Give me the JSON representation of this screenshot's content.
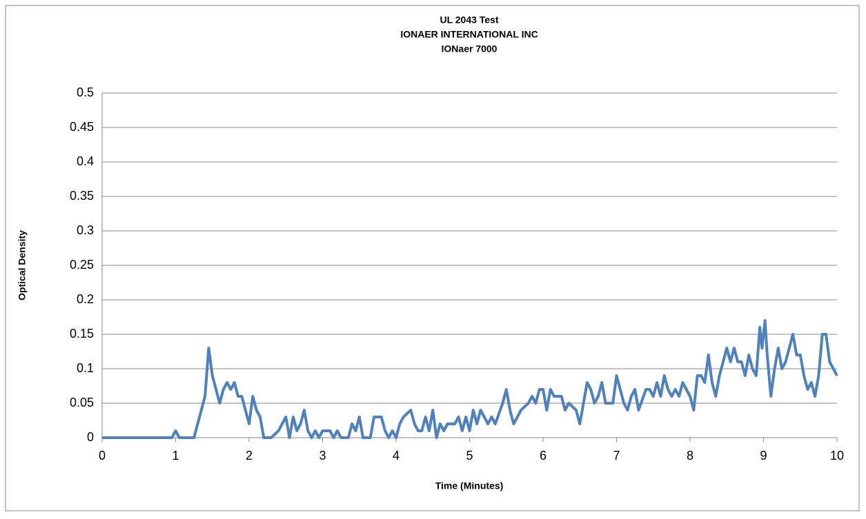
{
  "chart_data": {
    "type": "line",
    "title": [
      "UL 2043 Test",
      "IONAER INTERNATIONAL INC",
      "IONaer 7000"
    ],
    "x_label": "Time (Minutes)",
    "y_label": "Optical Density",
    "xlim": [
      0,
      10
    ],
    "xticks": [
      0,
      1,
      2,
      3,
      4,
      5,
      6,
      7,
      8,
      9,
      10
    ],
    "ylim": [
      0,
      0.5
    ],
    "yticks": [
      0,
      0.05,
      0.1,
      0.15,
      0.2,
      0.25,
      0.3,
      0.35,
      0.4,
      0.45,
      0.5
    ],
    "grid": true,
    "series": [
      {
        "color": "#4f81bd",
        "x": [
          0,
          0.95,
          1.0,
          1.05,
          1.25,
          1.3,
          1.35,
          1.4,
          1.45,
          1.5,
          1.55,
          1.6,
          1.65,
          1.7,
          1.75,
          1.8,
          1.85,
          1.9,
          1.95,
          2.0,
          2.05,
          2.1,
          2.15,
          2.2,
          2.3,
          2.4,
          2.45,
          2.5,
          2.55,
          2.6,
          2.65,
          2.7,
          2.75,
          2.8,
          2.85,
          2.9,
          2.95,
          3.0,
          3.1,
          3.15,
          3.2,
          3.25,
          3.35,
          3.4,
          3.45,
          3.5,
          3.55,
          3.65,
          3.7,
          3.8,
          3.85,
          3.9,
          3.95,
          4.0,
          4.05,
          4.1,
          4.2,
          4.25,
          4.3,
          4.35,
          4.4,
          4.45,
          4.5,
          4.55,
          4.6,
          4.65,
          4.7,
          4.8,
          4.85,
          4.9,
          4.95,
          5.0,
          5.05,
          5.1,
          5.15,
          5.2,
          5.25,
          5.3,
          5.35,
          5.45,
          5.5,
          5.55,
          5.6,
          5.65,
          5.7,
          5.8,
          5.85,
          5.9,
          5.95,
          6.0,
          6.05,
          6.1,
          6.15,
          6.25,
          6.3,
          6.35,
          6.45,
          6.5,
          6.55,
          6.6,
          6.65,
          6.7,
          6.75,
          6.8,
          6.85,
          6.95,
          7.0,
          7.05,
          7.1,
          7.15,
          7.2,
          7.25,
          7.3,
          7.4,
          7.45,
          7.5,
          7.55,
          7.6,
          7.65,
          7.7,
          7.75,
          7.8,
          7.85,
          7.9,
          7.95,
          8.0,
          8.05,
          8.1,
          8.15,
          8.2,
          8.25,
          8.3,
          8.35,
          8.4,
          8.5,
          8.55,
          8.6,
          8.65,
          8.7,
          8.75,
          8.8,
          8.85,
          8.9,
          8.95,
          8.98,
          9.02,
          9.05,
          9.1,
          9.15,
          9.2,
          9.25,
          9.3,
          9.4,
          9.45,
          9.5,
          9.55,
          9.6,
          9.65,
          9.7,
          9.75,
          9.8,
          9.85,
          9.9,
          9.95,
          10
        ],
        "values": [
          0,
          0,
          0.01,
          0,
          0,
          0.02,
          0.04,
          0.06,
          0.13,
          0.09,
          0.07,
          0.05,
          0.07,
          0.08,
          0.07,
          0.08,
          0.06,
          0.06,
          0.04,
          0.02,
          0.06,
          0.04,
          0.03,
          0,
          0,
          0.01,
          0.02,
          0.03,
          0,
          0.03,
          0.01,
          0.02,
          0.04,
          0.01,
          0,
          0.01,
          0,
          0.01,
          0.01,
          0,
          0.01,
          0,
          0,
          0.02,
          0.01,
          0.03,
          0,
          0,
          0.03,
          0.03,
          0.01,
          0,
          0.01,
          0,
          0.02,
          0.03,
          0.04,
          0.02,
          0.01,
          0.01,
          0.03,
          0.01,
          0.04,
          0,
          0.02,
          0.01,
          0.02,
          0.02,
          0.03,
          0.01,
          0.03,
          0.01,
          0.04,
          0.02,
          0.04,
          0.03,
          0.02,
          0.03,
          0.02,
          0.05,
          0.07,
          0.04,
          0.02,
          0.03,
          0.04,
          0.05,
          0.06,
          0.05,
          0.07,
          0.07,
          0.04,
          0.07,
          0.06,
          0.06,
          0.04,
          0.05,
          0.04,
          0.02,
          0.05,
          0.08,
          0.07,
          0.05,
          0.06,
          0.08,
          0.05,
          0.05,
          0.09,
          0.07,
          0.05,
          0.04,
          0.06,
          0.07,
          0.04,
          0.07,
          0.07,
          0.06,
          0.08,
          0.06,
          0.09,
          0.07,
          0.06,
          0.07,
          0.06,
          0.08,
          0.07,
          0.06,
          0.04,
          0.09,
          0.09,
          0.08,
          0.12,
          0.08,
          0.06,
          0.09,
          0.13,
          0.11,
          0.13,
          0.11,
          0.11,
          0.09,
          0.12,
          0.1,
          0.09,
          0.16,
          0.13,
          0.17,
          0.12,
          0.06,
          0.1,
          0.13,
          0.1,
          0.11,
          0.15,
          0.12,
          0.12,
          0.09,
          0.07,
          0.08,
          0.06,
          0.09,
          0.15,
          0.15,
          0.11,
          0.1,
          0.09
        ]
      }
    ]
  }
}
